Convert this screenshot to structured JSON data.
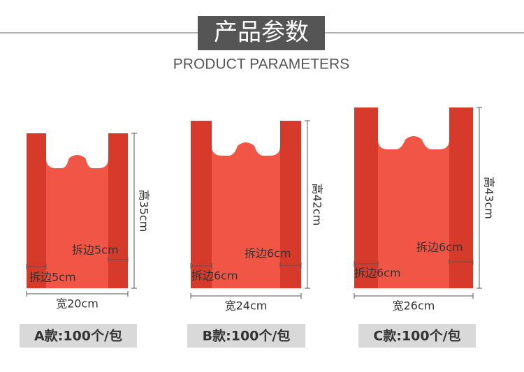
{
  "header": {
    "title": "产品参数",
    "subtitle": "PRODUCT PARAMETERS"
  },
  "bags": [
    {
      "width": "宽20cm",
      "height": "高35cm",
      "left_side": "拆边5cm",
      "right_side": "拆边5cm",
      "caption": "A款:100个/包"
    },
    {
      "width": "宽24cm",
      "height": "高42cm",
      "left_side": "拆边6cm",
      "right_side": "拆边6cm",
      "caption": "B款:100个/包"
    },
    {
      "width": "宽26cm",
      "height": "高43cm",
      "left_side": "拆边6cm",
      "right_side": "拆边6cm",
      "caption": "C款:100个/包"
    }
  ]
}
